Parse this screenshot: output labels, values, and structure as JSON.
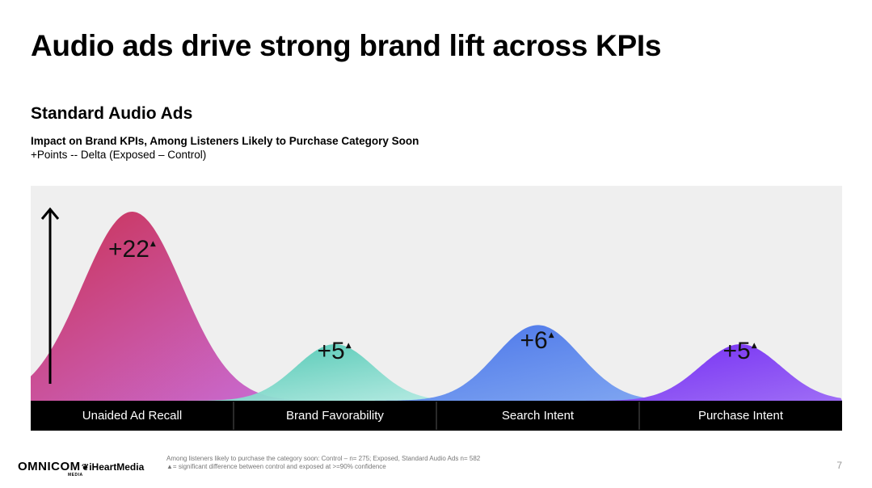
{
  "header": {
    "title": "Audio ads drive strong brand lift across KPIs",
    "subtitle": "Standard Audio Ads",
    "description": "Impact on Brand KPIs, Among Listeners Likely to Purchase Category Soon",
    "measure": "+Points -- Delta (Exposed – Control)"
  },
  "chart_data": {
    "type": "area",
    "categories": [
      "Unaided Ad Recall",
      "Brand Favorability",
      "Search Intent",
      "Purchase Intent"
    ],
    "values": [
      22,
      5,
      6,
      5
    ],
    "labels": [
      "+22",
      "+5",
      "+6",
      "+5"
    ],
    "significant": [
      true,
      true,
      true,
      true
    ],
    "significance_marker": "▲",
    "colors": [
      [
        "#c8284e",
        "#c76be0"
      ],
      [
        "#3fc2ac",
        "#bdeee6"
      ],
      [
        "#3d6ae8",
        "#7fa7f2"
      ],
      [
        "#6a1ef2",
        "#9a66f6"
      ]
    ],
    "background": "#efefef",
    "category_bar_color": "#000000",
    "arrow": "up"
  },
  "footer": {
    "note_line1": "Among listeners likely to purchase the category soon: Control – n= 275; Exposed, Standard Audio Ads n= 582",
    "note_line2": "▲= significant difference between control and exposed at >=90% confidence",
    "logo_omnicom": "OMNICOM",
    "logo_omnicom_sub": "MEDIA",
    "logo_iheart_symbol": "❦",
    "logo_iheart": "iHeartMedia",
    "page_number": "7"
  }
}
